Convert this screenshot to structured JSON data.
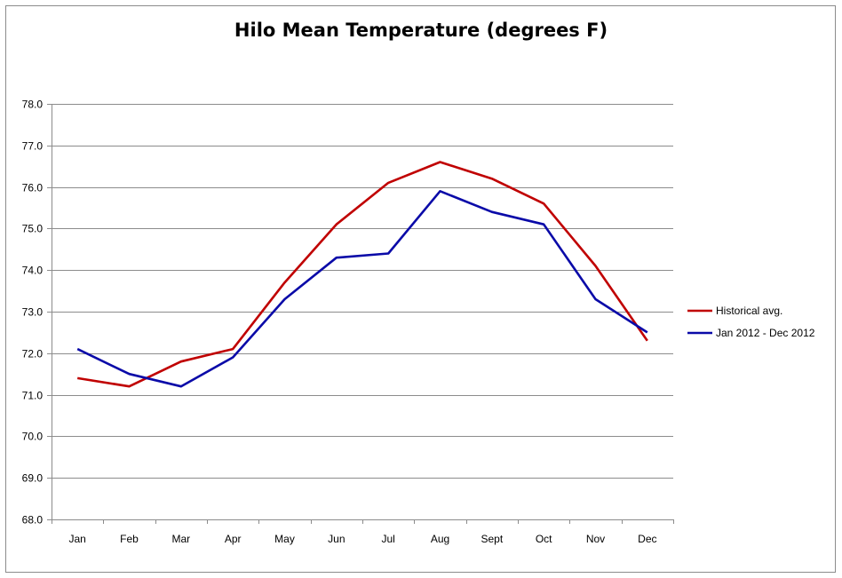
{
  "chart_data": {
    "type": "line",
    "title": "Hilo Mean Temperature (degrees F)",
    "xlabel": "",
    "ylabel": "",
    "categories": [
      "Jan",
      "Feb",
      "Mar",
      "Apr",
      "May",
      "Jun",
      "Jul",
      "Aug",
      "Sept",
      "Oct",
      "Nov",
      "Dec"
    ],
    "ylim": [
      68.0,
      78.0
    ],
    "yticks": [
      "68.0",
      "69.0",
      "70.0",
      "71.0",
      "72.0",
      "73.0",
      "74.0",
      "75.0",
      "76.0",
      "77.0",
      "78.0"
    ],
    "grid": "horizontal",
    "legend_position": "right",
    "series": [
      {
        "name": "Historical avg.",
        "color": "#c00000",
        "values": [
          71.4,
          71.2,
          71.8,
          72.1,
          73.7,
          75.1,
          76.1,
          76.6,
          76.2,
          75.6,
          74.1,
          72.3
        ]
      },
      {
        "name": "Jan 2012 - Dec 2012",
        "color": "#0a0aa8",
        "values": [
          72.1,
          71.5,
          71.2,
          71.9,
          73.3,
          74.3,
          74.4,
          75.9,
          75.4,
          75.1,
          73.3,
          72.5
        ]
      }
    ]
  }
}
